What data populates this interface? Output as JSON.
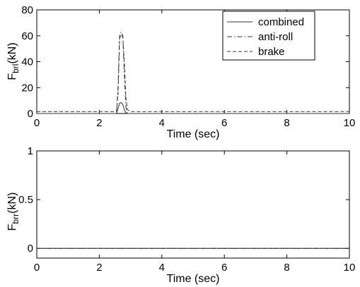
{
  "chart_data": [
    {
      "type": "line",
      "xlabel": "Time (sec)",
      "ylabel_main": "F",
      "ylabel_sub": "brl",
      "ylabel_unit": "(kN)",
      "xlim": [
        0,
        10
      ],
      "ylim": [
        0,
        80
      ],
      "xticks": [
        0,
        2,
        4,
        6,
        8,
        10
      ],
      "yticks": [
        0,
        20,
        40,
        60,
        80
      ],
      "grid": false,
      "legend_position": "top-right",
      "series": [
        {
          "name": "combined",
          "style": "solid",
          "x": [
            0,
            2.55,
            2.6,
            2.65,
            2.7,
            2.75,
            2.8,
            2.85,
            2.9,
            10
          ],
          "y": [
            0,
            0,
            4,
            8,
            8.5,
            7,
            3,
            0.5,
            0,
            0
          ]
        },
        {
          "name": "anti-roll",
          "style": "dashdot",
          "x": [
            0,
            2.55,
            2.6,
            2.65,
            2.7,
            2.75,
            2.8,
            2.85,
            2.9,
            10
          ],
          "y": [
            0,
            0,
            20,
            61,
            63,
            60,
            30,
            5,
            0,
            0
          ]
        },
        {
          "name": "brake",
          "style": "dashed",
          "x": [
            0,
            2.55,
            2.6,
            2.65,
            2.7,
            2.75,
            2.8,
            2.85,
            2.9,
            3.0,
            10
          ],
          "y": [
            1.5,
            1.5,
            15,
            58,
            61,
            59,
            40,
            12,
            3,
            1.5,
            1.5
          ]
        }
      ]
    },
    {
      "type": "line",
      "xlabel": "Time (sec)",
      "ylabel_main": "F",
      "ylabel_sub": "brr",
      "ylabel_unit": "(kN)",
      "xlim": [
        0,
        10
      ],
      "ylim": [
        -0.1,
        1
      ],
      "xticks": [
        0,
        2,
        4,
        6,
        8,
        10
      ],
      "yticks": [
        0,
        0.5,
        1
      ],
      "ytick_labels": [
        "0",
        "0.5",
        "1"
      ],
      "grid": false,
      "series": [
        {
          "style": "solid",
          "x": [
            0,
            10
          ],
          "y": [
            0,
            0
          ]
        },
        {
          "style": "dashdot",
          "x": [
            0,
            10
          ],
          "y": [
            0,
            0
          ]
        },
        {
          "style": "dashed",
          "x": [
            0,
            10
          ],
          "y": [
            0,
            0
          ]
        }
      ]
    }
  ]
}
